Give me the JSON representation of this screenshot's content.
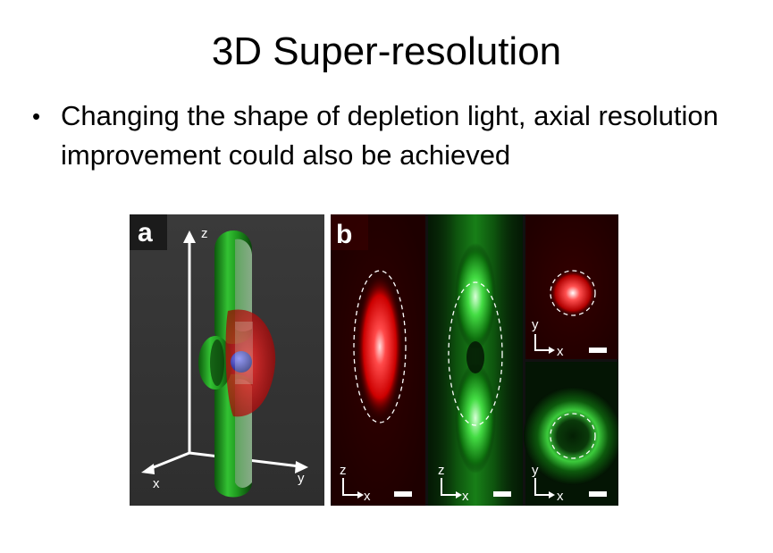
{
  "slide": {
    "title": "3D Super-resolution",
    "bullets": [
      "Changing the shape of depletion light, axial resolution improvement could also be achieved"
    ]
  },
  "figure": {
    "panel_a": {
      "letter": "a",
      "axis_labels": {
        "z": "z",
        "x": "x",
        "y": "y"
      }
    },
    "panel_b": {
      "letter": "b",
      "subpanels": [
        {
          "id": "xz-excitation",
          "axis_v": "z",
          "axis_h": "x",
          "color": "#ff1a1a"
        },
        {
          "id": "xz-depletion",
          "axis_v": "z",
          "axis_h": "x",
          "color": "#22dd22"
        },
        {
          "id": "xy-excitation",
          "axis_v": "y",
          "axis_h": "x",
          "color": "#ff1a1a"
        },
        {
          "id": "xy-depletion",
          "axis_v": "y",
          "axis_h": "x",
          "color": "#22dd22"
        }
      ]
    }
  }
}
